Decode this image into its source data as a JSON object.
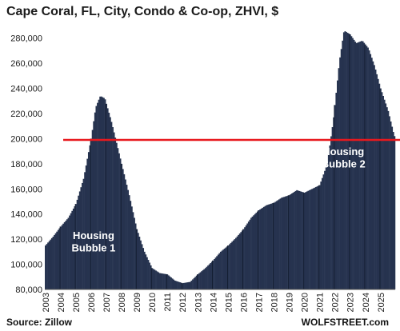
{
  "chart_data": {
    "type": "bar",
    "title": "Cape Coral, FL, City, Condo & Co-op, ZHVI, $",
    "ylim": [
      80000,
      290000
    ],
    "yticks": [
      "80,000",
      "100,000",
      "120,000",
      "140,000",
      "160,000",
      "180,000",
      "200,000",
      "220,000",
      "240,000",
      "260,000",
      "280,000"
    ],
    "ytick_values": [
      80000,
      100000,
      120000,
      140000,
      160000,
      180000,
      200000,
      220000,
      240000,
      260000,
      280000
    ],
    "xticks": [
      "2003",
      "2004",
      "2005",
      "2006",
      "2007",
      "2008",
      "2009",
      "2010",
      "2011",
      "2012",
      "2013",
      "2014",
      "2015",
      "2016",
      "2017",
      "2018",
      "2019",
      "2020",
      "2021",
      "2022",
      "2023",
      "2024",
      "2025"
    ],
    "x_start_year": 2003,
    "x_end_year": 2026,
    "monthly_anchor_points": [
      {
        "t": 2003.0,
        "v": 115000
      },
      {
        "t": 2003.5,
        "v": 122000
      },
      {
        "t": 2004.0,
        "v": 130000
      },
      {
        "t": 2004.5,
        "v": 137000
      },
      {
        "t": 2005.0,
        "v": 148000
      },
      {
        "t": 2005.5,
        "v": 168000
      },
      {
        "t": 2006.0,
        "v": 200000
      },
      {
        "t": 2006.3,
        "v": 225000
      },
      {
        "t": 2006.6,
        "v": 234000
      },
      {
        "t": 2006.9,
        "v": 232000
      },
      {
        "t": 2007.3,
        "v": 215000
      },
      {
        "t": 2007.7,
        "v": 195000
      },
      {
        "t": 2008.0,
        "v": 180000
      },
      {
        "t": 2008.5,
        "v": 155000
      },
      {
        "t": 2009.0,
        "v": 128000
      },
      {
        "t": 2009.5,
        "v": 110000
      },
      {
        "t": 2010.0,
        "v": 97000
      },
      {
        "t": 2010.5,
        "v": 93000
      },
      {
        "t": 2011.0,
        "v": 92000
      },
      {
        "t": 2011.5,
        "v": 87000
      },
      {
        "t": 2012.0,
        "v": 85000
      },
      {
        "t": 2012.5,
        "v": 86000
      },
      {
        "t": 2013.0,
        "v": 92000
      },
      {
        "t": 2013.5,
        "v": 97000
      },
      {
        "t": 2014.0,
        "v": 103000
      },
      {
        "t": 2014.5,
        "v": 110000
      },
      {
        "t": 2015.0,
        "v": 115000
      },
      {
        "t": 2015.5,
        "v": 121000
      },
      {
        "t": 2016.0,
        "v": 128000
      },
      {
        "t": 2016.5,
        "v": 137000
      },
      {
        "t": 2017.0,
        "v": 143000
      },
      {
        "t": 2017.5,
        "v": 147000
      },
      {
        "t": 2018.0,
        "v": 149000
      },
      {
        "t": 2018.5,
        "v": 153000
      },
      {
        "t": 2019.0,
        "v": 155000
      },
      {
        "t": 2019.5,
        "v": 159000
      },
      {
        "t": 2020.0,
        "v": 157000
      },
      {
        "t": 2020.5,
        "v": 160000
      },
      {
        "t": 2021.0,
        "v": 163000
      },
      {
        "t": 2021.5,
        "v": 180000
      },
      {
        "t": 2021.9,
        "v": 215000
      },
      {
        "t": 2022.3,
        "v": 262000
      },
      {
        "t": 2022.6,
        "v": 286000
      },
      {
        "t": 2023.0,
        "v": 283000
      },
      {
        "t": 2023.4,
        "v": 276000
      },
      {
        "t": 2023.8,
        "v": 278000
      },
      {
        "t": 2024.2,
        "v": 272000
      },
      {
        "t": 2024.6,
        "v": 258000
      },
      {
        "t": 2025.0,
        "v": 240000
      },
      {
        "t": 2025.5,
        "v": 222000
      },
      {
        "t": 2025.9,
        "v": 202000
      }
    ],
    "reference_line": {
      "value": 199000,
      "color": "#e8191e"
    },
    "bar_color": "#26334f",
    "annotations": [
      {
        "lines": [
          "Housing",
          "Bubble 1"
        ],
        "t": 2006.2,
        "v": 120000
      },
      {
        "lines": [
          "Housing",
          "Bubble 2"
        ],
        "t": 2022.6,
        "v": 187000
      }
    ]
  },
  "footer": {
    "source": "Source: Zillow",
    "brand": "WOLFSTREET.com"
  }
}
